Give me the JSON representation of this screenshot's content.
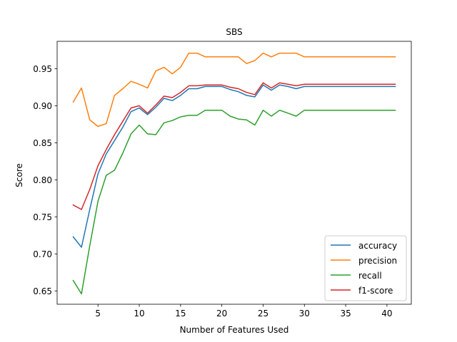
{
  "chart_data": {
    "type": "line",
    "title": "SBS",
    "xlabel": "Number of Features Used",
    "ylabel": "Score",
    "xlim": [
      0.05,
      42.95
    ],
    "ylim": [
      0.632,
      0.987
    ],
    "xticks": [
      5,
      10,
      15,
      20,
      25,
      30,
      35,
      40
    ],
    "yticks": [
      0.65,
      0.7,
      0.75,
      0.8,
      0.85,
      0.9,
      0.95
    ],
    "grid": false,
    "legend_position": "lower-right",
    "x": [
      2,
      3,
      4,
      5,
      6,
      7,
      8,
      9,
      10,
      11,
      12,
      13,
      14,
      15,
      16,
      17,
      18,
      19,
      20,
      21,
      22,
      23,
      24,
      25,
      26,
      27,
      28,
      29,
      30,
      31,
      32,
      33,
      34,
      35,
      36,
      37,
      38,
      39,
      40,
      41
    ],
    "series": [
      {
        "name": "accuracy",
        "color": "#1f77b4",
        "values": [
          0.723,
          0.709,
          0.76,
          0.808,
          0.835,
          0.853,
          0.871,
          0.892,
          0.897,
          0.888,
          0.898,
          0.91,
          0.907,
          0.914,
          0.923,
          0.923,
          0.926,
          0.926,
          0.926,
          0.922,
          0.919,
          0.914,
          0.912,
          0.928,
          0.921,
          0.928,
          0.926,
          0.923,
          0.926,
          0.926,
          0.926,
          0.926,
          0.926,
          0.926,
          0.926,
          0.926,
          0.926,
          0.926,
          0.926,
          0.926
        ]
      },
      {
        "name": "precision",
        "color": "#ff7f0e",
        "values": [
          0.905,
          0.924,
          0.881,
          0.872,
          0.876,
          0.914,
          0.923,
          0.933,
          0.929,
          0.924,
          0.947,
          0.952,
          0.943,
          0.952,
          0.971,
          0.971,
          0.966,
          0.966,
          0.966,
          0.966,
          0.966,
          0.957,
          0.961,
          0.971,
          0.966,
          0.971,
          0.971,
          0.971,
          0.966,
          0.966,
          0.966,
          0.966,
          0.966,
          0.966,
          0.966,
          0.966,
          0.966,
          0.966,
          0.966,
          0.966
        ]
      },
      {
        "name": "recall",
        "color": "#2ca02c",
        "values": [
          0.664,
          0.646,
          0.711,
          0.771,
          0.806,
          0.813,
          0.836,
          0.862,
          0.874,
          0.862,
          0.861,
          0.877,
          0.88,
          0.885,
          0.887,
          0.887,
          0.894,
          0.894,
          0.894,
          0.886,
          0.882,
          0.881,
          0.874,
          0.894,
          0.886,
          0.894,
          0.89,
          0.886,
          0.894,
          0.894,
          0.894,
          0.894,
          0.894,
          0.894,
          0.894,
          0.894,
          0.894,
          0.894,
          0.894,
          0.894
        ]
      },
      {
        "name": "f1-score",
        "color": "#d62728",
        "values": [
          0.766,
          0.76,
          0.787,
          0.819,
          0.841,
          0.861,
          0.879,
          0.897,
          0.9,
          0.89,
          0.901,
          0.913,
          0.911,
          0.918,
          0.927,
          0.927,
          0.928,
          0.928,
          0.928,
          0.925,
          0.923,
          0.918,
          0.915,
          0.931,
          0.924,
          0.931,
          0.929,
          0.927,
          0.929,
          0.929,
          0.929,
          0.929,
          0.929,
          0.929,
          0.929,
          0.929,
          0.929,
          0.929,
          0.929,
          0.929
        ]
      }
    ]
  }
}
